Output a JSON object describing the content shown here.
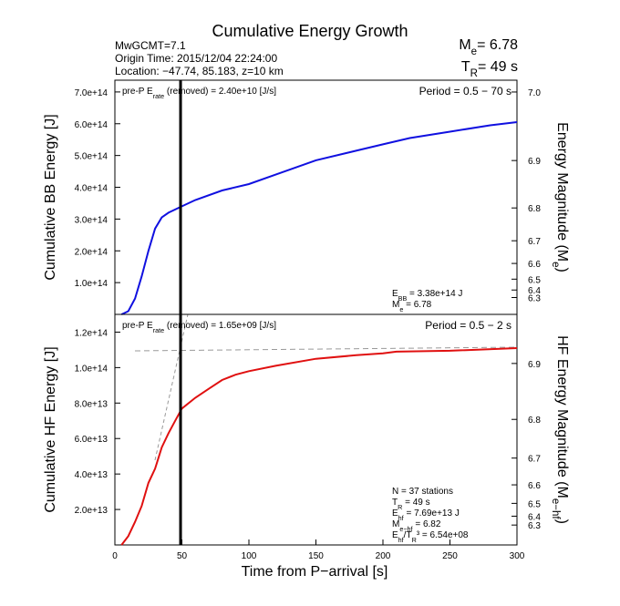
{
  "title": "Cumulative Energy Growth",
  "info": [
    "MwGCMT=7.1",
    "Origin Time: 2015/12/04 22:24:00",
    "Location: −47.74, 85.183, z=10 km"
  ],
  "me_label": [
    "M",
    "e",
    "= 6.78"
  ],
  "tr_label": [
    "T",
    "R",
    "= 49 s"
  ],
  "xlabel": "Time from P−arrival [s]",
  "chart_data": [
    {
      "type": "line",
      "ylabel": "Cumulative BB Energy [J]",
      "y2label": [
        "Energy Magnitude (M",
        "e",
        ")"
      ],
      "note": [
        "pre-P E",
        "rate",
        " (removed) = 2.40e+10 [J/s]"
      ],
      "period": "Period = 0.5 − 70 s",
      "stats": [
        [
          "E",
          "BB",
          " = 3.38e+14 J"
        ],
        [
          "M",
          "e",
          " = 6.78"
        ]
      ],
      "vline": 49,
      "xlim": [
        0,
        300
      ],
      "ylim": [
        0,
        737000000000000.0
      ],
      "yticks": [
        {
          "value": 100000000000000.0,
          "label": "1.0e+14"
        },
        {
          "value": 200000000000000.0,
          "label": "2.0e+14"
        },
        {
          "value": 300000000000000.0,
          "label": "3.0e+14"
        },
        {
          "value": 400000000000000.0,
          "label": "4.0e+14"
        },
        {
          "value": 500000000000000.0,
          "label": "5.0e+14"
        },
        {
          "value": 600000000000000.0,
          "label": "6.0e+14"
        },
        {
          "value": 700000000000000.0,
          "label": "7.0e+14"
        }
      ],
      "y2ticks": [
        {
          "value": 7,
          "label": "7.0"
        },
        6.9,
        6.8,
        6.7,
        6.6,
        6.5,
        6.4,
        6.3
      ],
      "x": [
        5,
        10,
        15,
        20,
        25,
        30,
        35,
        40,
        50,
        60,
        80,
        100,
        120,
        150,
        180,
        200,
        220,
        250,
        280,
        300
      ],
      "series": [
        {
          "color": "#1010e0",
          "values": [
            0,
            10000000000000.0,
            50000000000000.0,
            120000000000000.0,
            200000000000000.0,
            270000000000000.0,
            305000000000000.0,
            320000000000000.0,
            340000000000000.0,
            360000000000000.0,
            390000000000000.0,
            410000000000000.0,
            440000000000000.0,
            485000000000000.0,
            515000000000000.0,
            535000000000000.0,
            555000000000000.0,
            575000000000000.0,
            595000000000000.0,
            605000000000000.0
          ]
        }
      ]
    },
    {
      "type": "line",
      "ylabel": "Cumulative HF Energy [J]",
      "y2label": [
        "HF Energy Magnitude (M",
        "e−hf",
        ")"
      ],
      "note": [
        "pre-P E",
        "rate",
        " (removed) = 1.65e+09 [J/s]"
      ],
      "period": "Period = 0.5 − 2 s",
      "stats": [
        [
          "N = 37 stations"
        ],
        [
          "T",
          "R",
          " = 49  s"
        ],
        [
          "E",
          "hf",
          " = 7.69e+13 J"
        ],
        [
          "M",
          "e−hf",
          " = 6.82"
        ],
        [
          "E",
          "hf",
          "/T",
          "R",
          "³ =  6.54e+08"
        ]
      ],
      "vline": 49,
      "xlim": [
        0,
        300
      ],
      "xticks": [
        0,
        50,
        100,
        150,
        200,
        250,
        300
      ],
      "ylim": [
        0,
        130000000000000.0
      ],
      "yticks": [
        {
          "value": 20000000000000.0,
          "label": "2.0e+13"
        },
        {
          "value": 40000000000000.0,
          "label": "4.0e+13"
        },
        {
          "value": 60000000000000.0,
          "label": "6.0e+13"
        },
        {
          "value": 80000000000000.0,
          "label": "8.0e+13"
        },
        {
          "value": 100000000000000.0,
          "label": "1.0e+14"
        },
        {
          "value": 120000000000000.0,
          "label": "1.2e+14"
        }
      ],
      "y2ticks": [
        6.9,
        6.8,
        6.7,
        6.6,
        6.5,
        6.4,
        6.3
      ],
      "x": [
        5,
        10,
        15,
        20,
        25,
        30,
        35,
        40,
        45,
        50,
        60,
        70,
        80,
        90,
        100,
        120,
        150,
        180,
        200,
        210,
        250,
        300
      ],
      "series": [
        {
          "color": "#e01010",
          "values": [
            0,
            5000000000000.0,
            13000000000000.0,
            22000000000000.0,
            35000000000000.0,
            43000000000000.0,
            55000000000000.0,
            63000000000000.0,
            70000000000000.0,
            76900000000000.0,
            83000000000000.0,
            88000000000000.0,
            93000000000000.0,
            96000000000000.0,
            98000000000000.0,
            101000000000000.0,
            105000000000000.0,
            107000000000000.0,
            108000000000000.0,
            109000000000000.0,
            109500000000000.0,
            111000000000000.0
          ]
        }
      ]
    }
  ]
}
